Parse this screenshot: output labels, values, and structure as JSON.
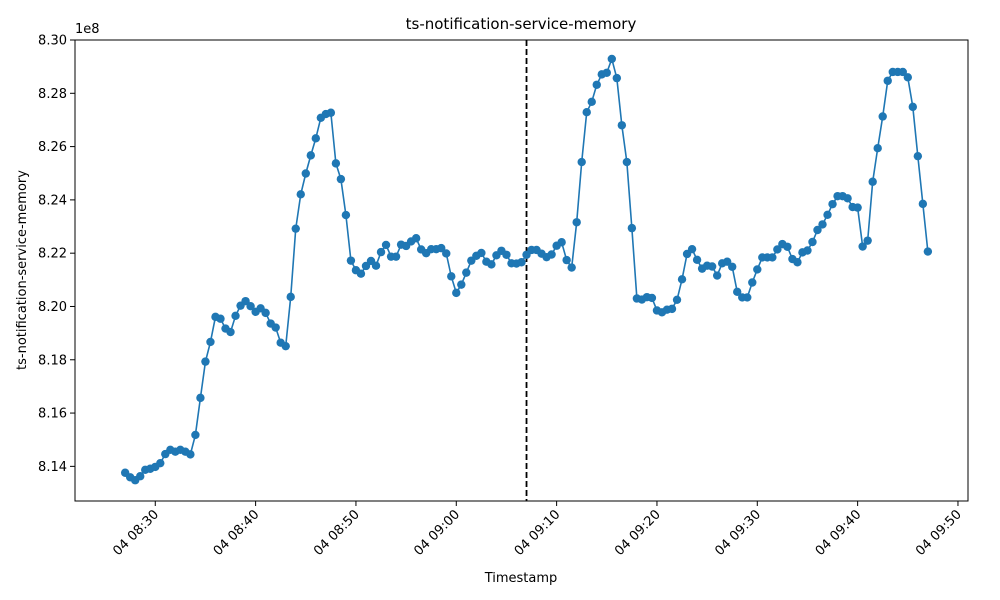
{
  "chart_data": {
    "type": "line",
    "title": "ts-notification-service-memory",
    "xlabel": "Timestamp",
    "ylabel": "ts-notification-service-memory",
    "y_offset_label": "1e8",
    "y_scale": 100000000,
    "ylim": [
      8.127,
      8.3
    ],
    "x_start": "04 08:27",
    "x_step_minutes": 0.5,
    "xlim": [
      "04 08:22",
      "04 09:51"
    ],
    "x_ticks": [
      "04 08:30",
      "04 08:40",
      "04 08:50",
      "04 09:00",
      "04 09:10",
      "04 09:20",
      "04 09:30",
      "04 09:40",
      "04 09:50"
    ],
    "y_ticks": [
      "8.14",
      "8.16",
      "8.18",
      "8.20",
      "8.22",
      "8.24",
      "8.26",
      "8.28",
      "8.30"
    ],
    "vline_x": "04 09:07",
    "line_color": "#1f77b4",
    "grid": false,
    "series": [
      {
        "name": "",
        "values": [
          8.1376,
          8.1359,
          8.1348,
          8.1363,
          8.1387,
          8.1391,
          8.1398,
          8.1412,
          8.1446,
          8.1462,
          8.1455,
          8.1462,
          8.1455,
          8.1445,
          8.1518,
          8.1657,
          8.1793,
          8.1867,
          8.1961,
          8.1954,
          8.1917,
          8.1904,
          8.1965,
          8.2003,
          8.202,
          8.2001,
          8.198,
          8.1993,
          8.1976,
          8.1936,
          8.1921,
          8.1864,
          8.1851,
          8.2036,
          8.2292,
          8.2421,
          8.2499,
          8.2567,
          8.2631,
          8.2708,
          8.2722,
          8.2727,
          8.2537,
          8.2478,
          8.2343,
          8.2172,
          8.2136,
          8.2123,
          8.2152,
          8.2171,
          8.2153,
          8.2204,
          8.2231,
          8.2187,
          8.2187,
          8.2232,
          8.2227,
          8.2244,
          8.2256,
          8.2214,
          8.22,
          8.2215,
          8.2215,
          8.2219,
          8.2199,
          8.2113,
          8.2051,
          8.2082,
          8.2127,
          8.2172,
          8.219,
          8.2201,
          8.2168,
          8.2158,
          8.2192,
          8.2209,
          8.2194,
          8.2162,
          8.2161,
          8.2166,
          8.2194,
          8.2212,
          8.2212,
          8.2198,
          8.2185,
          8.2195,
          8.2228,
          8.2241,
          8.2174,
          8.2146,
          8.2316,
          8.2542,
          8.2729,
          8.2768,
          8.2832,
          8.2871,
          8.2877,
          8.2929,
          8.2857,
          8.268,
          8.2542,
          8.2294,
          8.203,
          8.2026,
          8.2035,
          8.2032,
          8.1985,
          8.1978,
          8.1988,
          8.1991,
          8.2025,
          8.2102,
          8.2197,
          8.2215,
          8.2175,
          8.2142,
          8.2153,
          8.215,
          8.2116,
          8.2162,
          8.2168,
          8.2149,
          8.2055,
          8.2034,
          8.2034,
          8.209,
          8.2139,
          8.2184,
          8.2184,
          8.2184,
          8.2214,
          8.2234,
          8.2224,
          8.2178,
          8.2166,
          8.2203,
          8.221,
          8.2242,
          8.2287,
          8.2308,
          8.2344,
          8.2384,
          8.2414,
          8.2414,
          8.2406,
          8.2373,
          8.2371,
          8.2225,
          8.2247,
          8.2468,
          8.2594,
          8.2713,
          8.2847,
          8.288,
          8.288,
          8.288,
          8.286,
          8.2749,
          8.2564,
          8.2385,
          8.2206
        ]
      }
    ]
  }
}
